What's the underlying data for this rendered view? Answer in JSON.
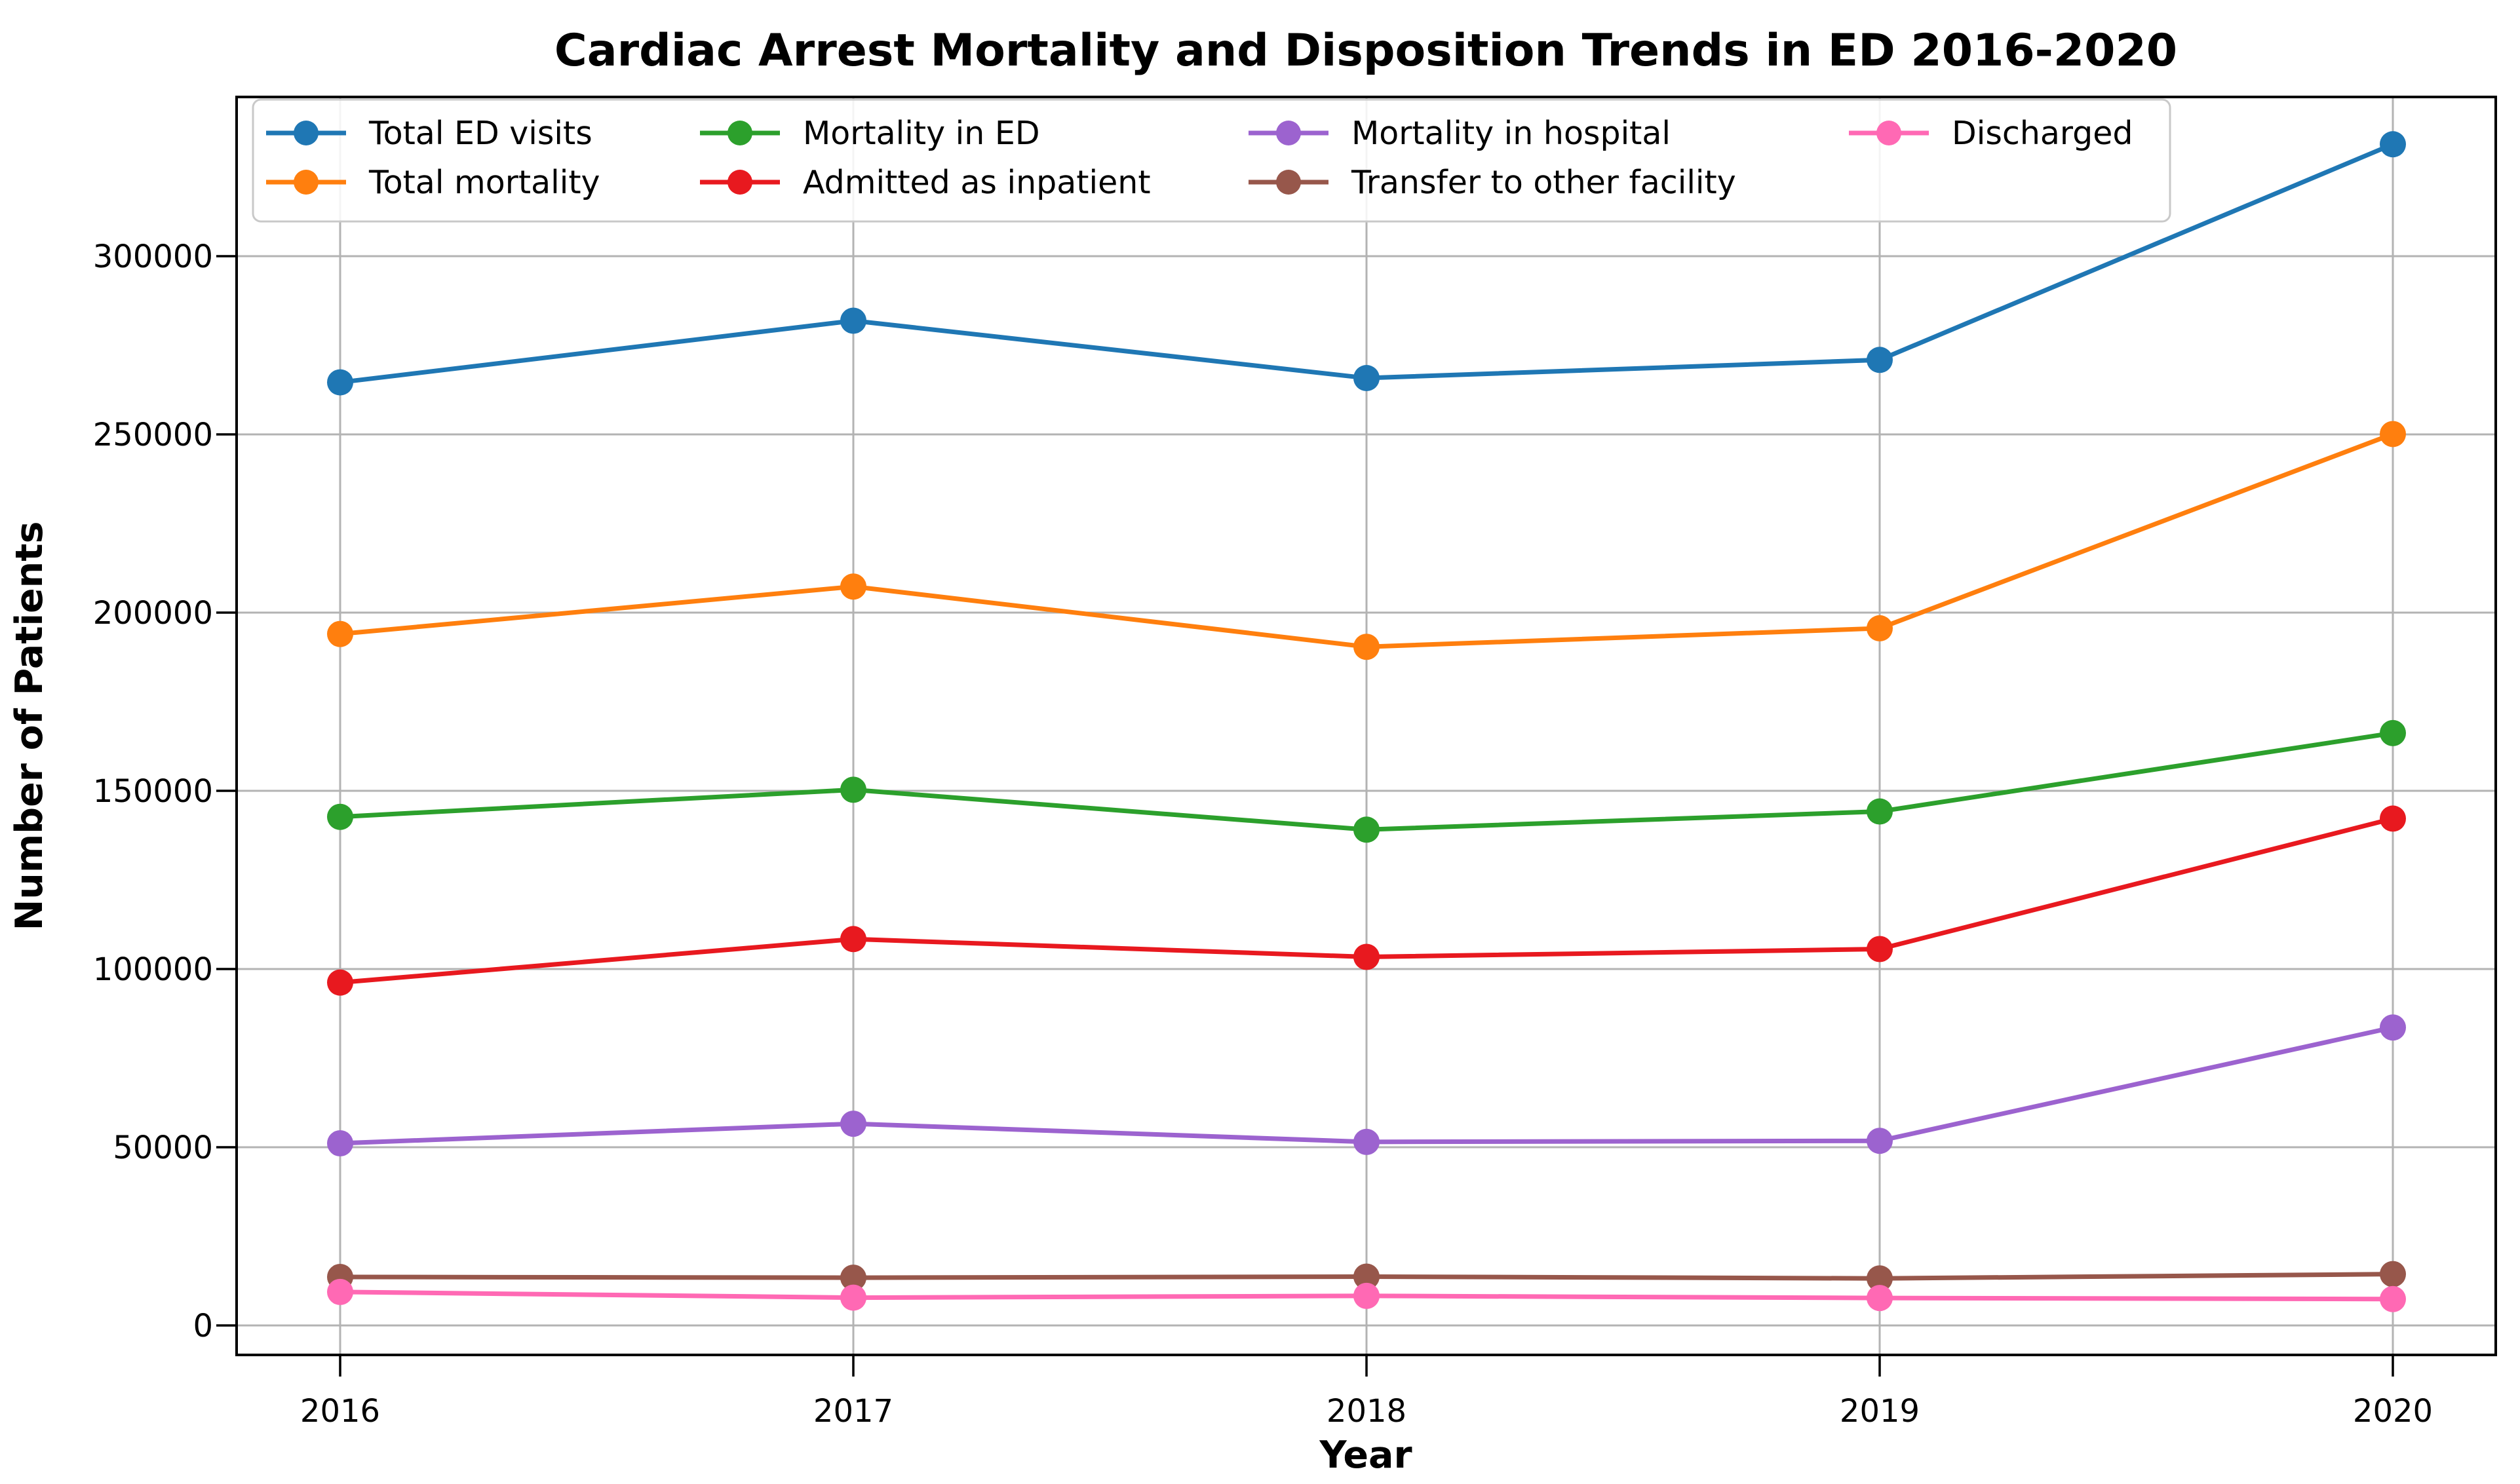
{
  "chart_data": {
    "type": "line",
    "title": "Cardiac Arrest Mortality and Disposition Trends in ED 2016-2020",
    "xlabel": "Year",
    "ylabel": "Number of Patients",
    "categories": [
      "2016",
      "2017",
      "2018",
      "2019",
      "2020"
    ],
    "yticks": [
      0,
      50000,
      100000,
      150000,
      200000,
      250000,
      300000
    ],
    "ytick_labels": [
      "0",
      "50000",
      "100000",
      "150000",
      "200000",
      "250000",
      "300000"
    ],
    "ylim": [
      -8300,
      344700
    ],
    "grid": true,
    "legend": {
      "position": "upper left inside",
      "columns": 4,
      "rows": 2
    },
    "series": [
      {
        "name": "Total ED visits",
        "color": "#1f77b4",
        "values": [
          264600,
          281900,
          265800,
          270900,
          331400
        ]
      },
      {
        "name": "Total mortality",
        "color": "#ff7f0e",
        "values": [
          194000,
          207300,
          190400,
          195600,
          250100
        ]
      },
      {
        "name": "Mortality in ED",
        "color": "#2ca02c",
        "values": [
          142700,
          150300,
          139100,
          144200,
          166200
        ]
      },
      {
        "name": "Admitted as inpatient",
        "color": "#e8191f",
        "values": [
          96200,
          108400,
          103400,
          105600,
          142200
        ]
      },
      {
        "name": "Mortality in hospital",
        "color": "#9c63cf",
        "values": [
          51100,
          56600,
          51500,
          51800,
          83600
        ]
      },
      {
        "name": "Transfer to other facility",
        "color": "#97574b",
        "values": [
          13600,
          13400,
          13700,
          13200,
          14400
        ]
      },
      {
        "name": "Discharged",
        "color": "#ff69b4",
        "values": [
          9400,
          7800,
          8300,
          7700,
          7400
        ]
      }
    ],
    "colors": {
      "grid": "#b3b3b3",
      "spine": "#000000",
      "legend_border": "#c9c9c9",
      "background": "#ffffff"
    }
  }
}
